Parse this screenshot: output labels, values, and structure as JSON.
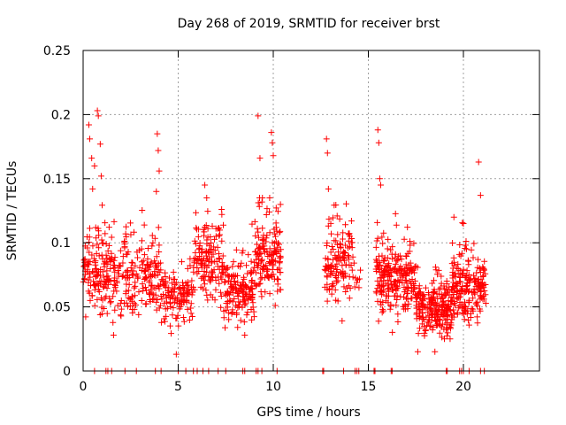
{
  "chart_data": {
    "type": "scatter",
    "title": "Day 268 of 2019, SRMTID for receiver brst",
    "xlabel": "GPS time / hours",
    "ylabel": "SRMTID / TECUs",
    "xlim": [
      0,
      24
    ],
    "ylim": [
      0,
      0.25
    ],
    "x_ticks": [
      0,
      5,
      10,
      15,
      20
    ],
    "x_tick_labels": [
      "0",
      "5",
      "10",
      "15",
      "20"
    ],
    "y_ticks": [
      0,
      0.05,
      0.1,
      0.15,
      0.2,
      0.25
    ],
    "y_tick_labels": [
      "0",
      "0.05",
      "0.1",
      "0.15",
      "0.2",
      "0.25"
    ],
    "grid": true,
    "marker": "+",
    "series_color": "#ff0000",
    "segments": [
      {
        "start": 0.0,
        "end": 4.1,
        "center": 0.075,
        "spread": 0.03,
        "n": 330
      },
      {
        "start": 4.1,
        "end": 5.8,
        "center": 0.06,
        "spread": 0.022,
        "n": 120
      },
      {
        "start": 5.8,
        "end": 7.4,
        "center": 0.085,
        "spread": 0.03,
        "n": 140
      },
      {
        "start": 7.4,
        "end": 9.0,
        "center": 0.062,
        "spread": 0.022,
        "n": 150
      },
      {
        "start": 9.0,
        "end": 10.4,
        "center": 0.09,
        "spread": 0.03,
        "n": 150
      },
      {
        "start": 12.7,
        "end": 14.2,
        "center": 0.085,
        "spread": 0.03,
        "n": 130
      },
      {
        "start": 14.2,
        "end": 14.6,
        "center": 0.075,
        "spread": 0.015,
        "n": 8
      },
      {
        "start": 15.4,
        "end": 17.5,
        "center": 0.07,
        "spread": 0.025,
        "n": 230
      },
      {
        "start": 17.5,
        "end": 19.4,
        "center": 0.048,
        "spread": 0.02,
        "n": 220
      },
      {
        "start": 19.4,
        "end": 21.2,
        "center": 0.065,
        "spread": 0.025,
        "n": 200
      }
    ],
    "spikes": [
      {
        "x": 0.75,
        "y": 0.203
      },
      {
        "x": 0.8,
        "y": 0.199
      },
      {
        "x": 0.3,
        "y": 0.192
      },
      {
        "x": 0.35,
        "y": 0.181
      },
      {
        "x": 0.9,
        "y": 0.177
      },
      {
        "x": 0.45,
        "y": 0.166
      },
      {
        "x": 0.6,
        "y": 0.16
      },
      {
        "x": 0.5,
        "y": 0.142
      },
      {
        "x": 0.95,
        "y": 0.152
      },
      {
        "x": 3.9,
        "y": 0.185
      },
      {
        "x": 3.95,
        "y": 0.172
      },
      {
        "x": 4.0,
        "y": 0.156
      },
      {
        "x": 3.85,
        "y": 0.14
      },
      {
        "x": 6.4,
        "y": 0.145
      },
      {
        "x": 6.5,
        "y": 0.135
      },
      {
        "x": 9.2,
        "y": 0.199
      },
      {
        "x": 9.9,
        "y": 0.186
      },
      {
        "x": 9.95,
        "y": 0.178
      },
      {
        "x": 9.3,
        "y": 0.166
      },
      {
        "x": 10.0,
        "y": 0.168
      },
      {
        "x": 12.8,
        "y": 0.181
      },
      {
        "x": 12.85,
        "y": 0.17
      },
      {
        "x": 12.9,
        "y": 0.142
      },
      {
        "x": 15.5,
        "y": 0.188
      },
      {
        "x": 15.55,
        "y": 0.178
      },
      {
        "x": 15.6,
        "y": 0.15
      },
      {
        "x": 15.65,
        "y": 0.145
      },
      {
        "x": 20.8,
        "y": 0.163
      },
      {
        "x": 20.9,
        "y": 0.137
      },
      {
        "x": 20.0,
        "y": 0.115
      },
      {
        "x": 19.5,
        "y": 0.12
      },
      {
        "x": 18.5,
        "y": 0.015
      },
      {
        "x": 17.6,
        "y": 0.015
      },
      {
        "x": 4.9,
        "y": 0.013
      },
      {
        "x": 1.6,
        "y": 0.028
      },
      {
        "x": 8.5,
        "y": 0.028
      },
      {
        "x": 19.0,
        "y": 0.025
      },
      {
        "x": 19.3,
        "y": 0.025
      }
    ],
    "zero_points_x": [
      0.6,
      1.2,
      1.3,
      1.5,
      2.2,
      2.8,
      3.8,
      4.1,
      5.0,
      5.4,
      5.8,
      6.0,
      6.3,
      6.6,
      7.1,
      7.5,
      8.4,
      8.5,
      9.1,
      9.2,
      9.4,
      10.2,
      12.6,
      12.65,
      13.7,
      14.3,
      14.4,
      14.5,
      15.3,
      15.35,
      16.2,
      16.25,
      19.1,
      19.15,
      19.8,
      19.9,
      20.0,
      20.3,
      20.9,
      21.1
    ]
  }
}
